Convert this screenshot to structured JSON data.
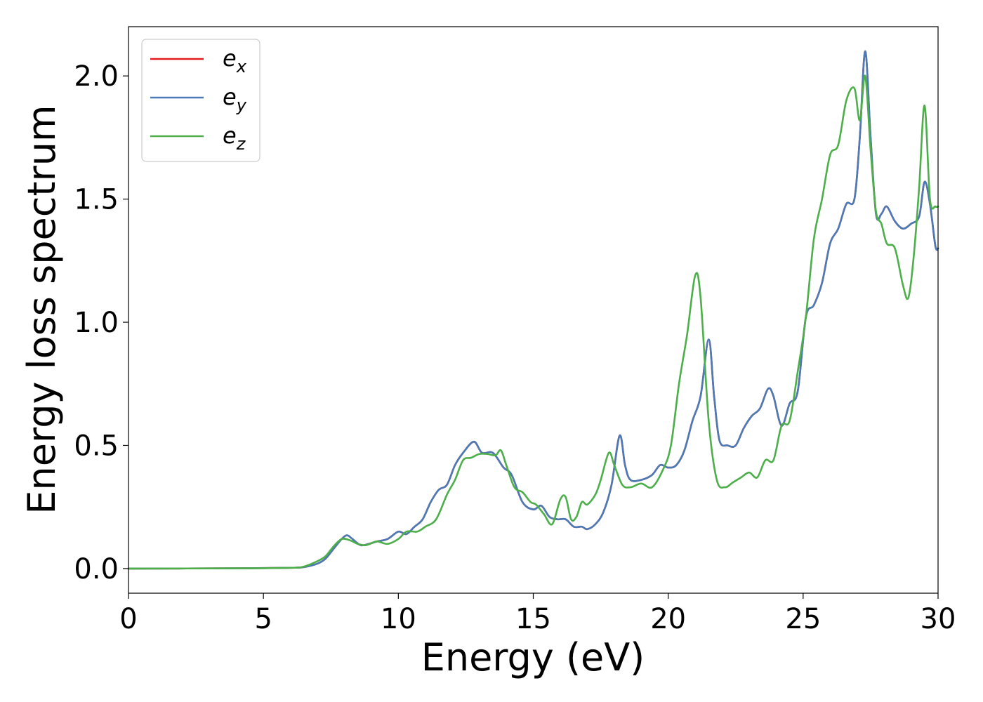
{
  "chart_data": {
    "type": "line",
    "xlabel": "Energy (eV)",
    "ylabel": "Energy loss spectrum",
    "xlim": [
      0,
      30
    ],
    "ylim": [
      -0.1,
      2.2
    ],
    "xticks": [
      0,
      5,
      10,
      15,
      20,
      25,
      30
    ],
    "yticks": [
      0.0,
      0.5,
      1.0,
      1.5,
      2.0
    ],
    "xtick_labels": [
      "0",
      "5",
      "10",
      "15",
      "20",
      "25",
      "30"
    ],
    "ytick_labels": [
      "0.0",
      "0.5",
      "1.0",
      "1.5",
      "2.0"
    ],
    "grid": false,
    "legend_position": "top-left",
    "series": [
      {
        "name": "e",
        "subscript": "x",
        "color": "#e41a1c",
        "x": [
          0,
          4,
          6,
          6.5,
          7,
          7.3,
          7.6,
          7.9,
          8.1,
          8.3,
          8.6,
          8.9,
          9.2,
          9.6,
          10,
          10.3,
          10.6,
          10.9,
          11.2,
          11.5,
          11.8,
          12.1,
          12.4,
          12.8,
          13.1,
          13.5,
          13.9,
          14.2,
          14.6,
          15.0,
          15.3,
          15.6,
          15.9,
          16.2,
          16.5,
          16.8,
          17.0,
          17.3,
          17.6,
          17.9,
          18.2,
          18.4,
          18.6,
          19.0,
          19.4,
          19.7,
          20.0,
          20.3,
          20.6,
          20.9,
          21.2,
          21.5,
          21.7,
          21.9,
          22.2,
          22.5,
          22.8,
          23.1,
          23.4,
          23.7,
          23.9,
          24.2,
          24.5,
          24.8,
          25.1,
          25.4,
          25.7,
          26.0,
          26.3,
          26.6,
          26.9,
          27.1,
          27.3,
          27.5,
          27.7,
          27.9,
          28.1,
          28.4,
          28.7,
          29.0,
          29.3,
          29.5,
          29.7,
          29.9,
          30
        ],
        "y": [
          0,
          0.001,
          0.003,
          0.006,
          0.02,
          0.04,
          0.08,
          0.12,
          0.135,
          0.12,
          0.095,
          0.1,
          0.11,
          0.12,
          0.15,
          0.14,
          0.17,
          0.2,
          0.27,
          0.32,
          0.34,
          0.42,
          0.47,
          0.515,
          0.47,
          0.47,
          0.41,
          0.38,
          0.27,
          0.24,
          0.255,
          0.21,
          0.2,
          0.2,
          0.17,
          0.17,
          0.16,
          0.18,
          0.23,
          0.34,
          0.54,
          0.42,
          0.36,
          0.36,
          0.38,
          0.42,
          0.41,
          0.42,
          0.48,
          0.6,
          0.7,
          0.93,
          0.7,
          0.52,
          0.5,
          0.5,
          0.57,
          0.62,
          0.65,
          0.73,
          0.7,
          0.58,
          0.67,
          0.72,
          1.02,
          1.07,
          1.16,
          1.32,
          1.38,
          1.48,
          1.5,
          1.75,
          2.1,
          1.75,
          1.44,
          1.44,
          1.47,
          1.41,
          1.38,
          1.4,
          1.43,
          1.57,
          1.48,
          1.31,
          1.3
        ]
      },
      {
        "name": "e",
        "subscript": "y",
        "color": "#4a7bb7",
        "x": [
          0,
          4,
          6,
          6.5,
          7,
          7.3,
          7.6,
          7.9,
          8.1,
          8.3,
          8.6,
          8.9,
          9.2,
          9.6,
          10,
          10.3,
          10.6,
          10.9,
          11.2,
          11.5,
          11.8,
          12.1,
          12.4,
          12.8,
          13.1,
          13.5,
          13.9,
          14.2,
          14.6,
          15.0,
          15.3,
          15.6,
          15.9,
          16.2,
          16.5,
          16.8,
          17.0,
          17.3,
          17.6,
          17.9,
          18.2,
          18.4,
          18.6,
          19.0,
          19.4,
          19.7,
          20.0,
          20.3,
          20.6,
          20.9,
          21.2,
          21.5,
          21.7,
          21.9,
          22.2,
          22.5,
          22.8,
          23.1,
          23.4,
          23.7,
          23.9,
          24.2,
          24.5,
          24.8,
          25.1,
          25.4,
          25.7,
          26.0,
          26.3,
          26.6,
          26.9,
          27.1,
          27.3,
          27.5,
          27.7,
          27.9,
          28.1,
          28.4,
          28.7,
          29.0,
          29.3,
          29.5,
          29.7,
          29.9,
          30
        ],
        "y": [
          0,
          0.001,
          0.003,
          0.006,
          0.02,
          0.04,
          0.08,
          0.12,
          0.135,
          0.12,
          0.095,
          0.1,
          0.11,
          0.12,
          0.15,
          0.14,
          0.17,
          0.2,
          0.27,
          0.32,
          0.34,
          0.42,
          0.47,
          0.515,
          0.47,
          0.47,
          0.41,
          0.38,
          0.27,
          0.24,
          0.255,
          0.21,
          0.2,
          0.2,
          0.17,
          0.17,
          0.16,
          0.18,
          0.23,
          0.34,
          0.54,
          0.42,
          0.36,
          0.36,
          0.38,
          0.42,
          0.41,
          0.42,
          0.48,
          0.6,
          0.7,
          0.93,
          0.7,
          0.52,
          0.5,
          0.5,
          0.57,
          0.62,
          0.65,
          0.73,
          0.7,
          0.58,
          0.67,
          0.72,
          1.02,
          1.07,
          1.16,
          1.32,
          1.38,
          1.48,
          1.5,
          1.75,
          2.1,
          1.75,
          1.44,
          1.44,
          1.47,
          1.41,
          1.38,
          1.4,
          1.43,
          1.57,
          1.48,
          1.31,
          1.3
        ]
      },
      {
        "name": "e",
        "subscript": "z",
        "color": "#4daf4a",
        "x": [
          0,
          4,
          6,
          6.5,
          7,
          7.3,
          7.6,
          7.9,
          8.2,
          8.5,
          8.8,
          9.2,
          9.6,
          10.0,
          10.3,
          10.7,
          11.0,
          11.4,
          11.8,
          12.1,
          12.4,
          12.7,
          13.0,
          13.3,
          13.6,
          13.8,
          14.0,
          14.3,
          14.6,
          14.9,
          15.1,
          15.4,
          15.7,
          16.0,
          16.2,
          16.4,
          16.6,
          16.8,
          17.0,
          17.3,
          17.5,
          17.8,
          18.0,
          18.3,
          18.6,
          19.0,
          19.4,
          19.8,
          20.1,
          20.4,
          20.7,
          21.0,
          21.2,
          21.5,
          21.8,
          22.1,
          22.4,
          22.7,
          23.0,
          23.3,
          23.6,
          23.9,
          24.2,
          24.5,
          24.8,
          25.1,
          25.4,
          25.7,
          26.0,
          26.3,
          26.6,
          26.9,
          27.1,
          27.3,
          27.5,
          27.7,
          27.9,
          28.1,
          28.4,
          28.7,
          28.9,
          29.1,
          29.3,
          29.5,
          29.7,
          29.9,
          30
        ],
        "y": [
          0,
          0.001,
          0.003,
          0.008,
          0.03,
          0.05,
          0.09,
          0.12,
          0.115,
          0.1,
          0.095,
          0.11,
          0.1,
          0.12,
          0.15,
          0.15,
          0.17,
          0.2,
          0.3,
          0.36,
          0.44,
          0.45,
          0.465,
          0.465,
          0.46,
          0.48,
          0.42,
          0.33,
          0.31,
          0.27,
          0.26,
          0.22,
          0.18,
          0.28,
          0.29,
          0.2,
          0.21,
          0.27,
          0.26,
          0.3,
          0.36,
          0.47,
          0.42,
          0.34,
          0.33,
          0.345,
          0.33,
          0.4,
          0.5,
          0.75,
          0.95,
          1.19,
          1.1,
          0.6,
          0.36,
          0.33,
          0.35,
          0.37,
          0.39,
          0.37,
          0.44,
          0.44,
          0.58,
          0.6,
          0.8,
          1.02,
          1.34,
          1.5,
          1.68,
          1.72,
          1.9,
          1.95,
          1.82,
          2.0,
          1.7,
          1.45,
          1.4,
          1.32,
          1.3,
          1.15,
          1.1,
          1.27,
          1.55,
          1.88,
          1.5,
          1.47,
          1.47
        ]
      }
    ]
  }
}
